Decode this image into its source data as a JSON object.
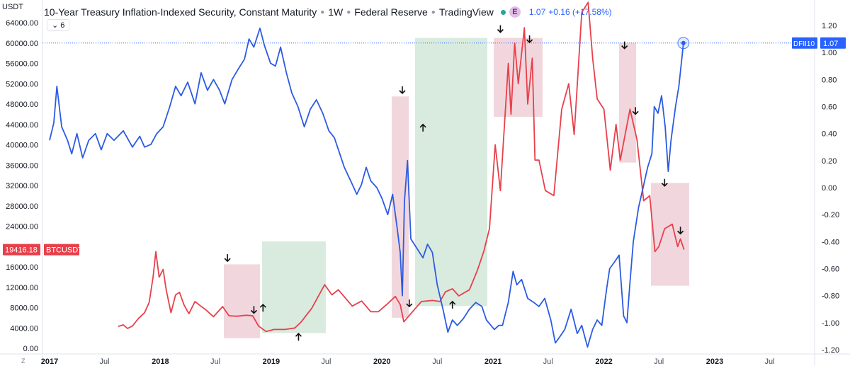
{
  "header": {
    "symbol": "USDT",
    "title": "10-Year Treasury Inflation-Indexed Security, Constant Maturity",
    "interval": "1W",
    "source": "Federal Reserve",
    "platform": "TradingView",
    "event_badge": "E",
    "value": "1.07",
    "change": "+0.16 (+17.58%)",
    "sub_count": "6",
    "axis_corner": "Z"
  },
  "tags": {
    "btc_price": "19416.18",
    "btc_name": "BTCUSDT",
    "dfii_name": "DFII10",
    "dfii_value": "1.07"
  },
  "colors": {
    "btc": "#e8404b",
    "dfii": "#2c5be3",
    "red_box": "#efd0d7",
    "green_box": "#d2e7d9",
    "crosshair": "#2962ff"
  },
  "chart_data": {
    "type": "line",
    "title": "10-Year Treasury Inflation-Indexed Security, Constant Maturity",
    "left_axis": {
      "label": "USDT",
      "ylim": [
        0,
        64000
      ],
      "ticks": [
        "0.00",
        "4000.00",
        "8000.00",
        "12000.00",
        "16000.00",
        "20000.00",
        "24000.00",
        "28000.00",
        "32000.00",
        "36000.00",
        "40000.00",
        "44000.00",
        "48000.00",
        "52000.00",
        "56000.00",
        "60000.00",
        "64000.00"
      ]
    },
    "right_axis": {
      "inverted": true,
      "ylim": [
        1.2,
        -1.2
      ],
      "ticks": [
        "1.20",
        "1.00",
        "0.80",
        "0.60",
        "0.40",
        "0.20",
        "0.00",
        "-0.20",
        "-0.40",
        "-0.60",
        "-0.80",
        "-1.00",
        "-1.20"
      ]
    },
    "x_ticks": [
      "2017",
      "Jul",
      "2018",
      "Jul",
      "2019",
      "Jul",
      "2020",
      "Jul",
      "2021",
      "Jul",
      "2022",
      "Jul",
      "2023",
      "Jul"
    ],
    "series": [
      {
        "name": "BTCUSDT",
        "axis": "left",
        "color": "#e8404b",
        "points": [
          [
            "2017-08-15",
            4300
          ],
          [
            "2017-09-01",
            4600
          ],
          [
            "2017-09-15",
            3900
          ],
          [
            "2017-10-01",
            4400
          ],
          [
            "2017-10-20",
            5800
          ],
          [
            "2017-11-10",
            7000
          ],
          [
            "2017-11-25",
            9000
          ],
          [
            "2017-12-08",
            14000
          ],
          [
            "2017-12-17",
            19000
          ],
          [
            "2017-12-28",
            14000
          ],
          [
            "2018-01-10",
            15500
          ],
          [
            "2018-01-20",
            11500
          ],
          [
            "2018-02-05",
            7000
          ],
          [
            "2018-02-20",
            10500
          ],
          [
            "2018-03-05",
            11000
          ],
          [
            "2018-03-20",
            8500
          ],
          [
            "2018-04-05",
            6800
          ],
          [
            "2018-04-25",
            9200
          ],
          [
            "2018-05-10",
            8500
          ],
          [
            "2018-06-01",
            7500
          ],
          [
            "2018-06-25",
            6200
          ],
          [
            "2018-07-25",
            8200
          ],
          [
            "2018-08-15",
            6400
          ],
          [
            "2018-09-10",
            6300
          ],
          [
            "2018-10-10",
            6500
          ],
          [
            "2018-11-01",
            6400
          ],
          [
            "2018-11-20",
            4400
          ],
          [
            "2018-12-15",
            3300
          ],
          [
            "2019-01-10",
            3700
          ],
          [
            "2019-02-15",
            3700
          ],
          [
            "2019-03-20",
            4000
          ],
          [
            "2019-04-10",
            5200
          ],
          [
            "2019-05-15",
            7900
          ],
          [
            "2019-06-26",
            12500
          ],
          [
            "2019-07-20",
            10500
          ],
          [
            "2019-08-10",
            11500
          ],
          [
            "2019-09-25",
            8300
          ],
          [
            "2019-10-26",
            9300
          ],
          [
            "2019-11-25",
            7200
          ],
          [
            "2019-12-20",
            7200
          ],
          [
            "2020-01-20",
            8800
          ],
          [
            "2020-02-14",
            10200
          ],
          [
            "2020-03-01",
            8600
          ],
          [
            "2020-03-13",
            5200
          ],
          [
            "2020-04-05",
            6800
          ],
          [
            "2020-05-10",
            9200
          ],
          [
            "2020-06-15",
            9400
          ],
          [
            "2020-07-10",
            9200
          ],
          [
            "2020-07-28",
            11100
          ],
          [
            "2020-08-20",
            11700
          ],
          [
            "2020-09-10",
            10300
          ],
          [
            "2020-10-15",
            11500
          ],
          [
            "2020-11-10",
            15300
          ],
          [
            "2020-12-01",
            19000
          ],
          [
            "2020-12-20",
            23500
          ],
          [
            "2021-01-08",
            40000
          ],
          [
            "2021-01-25",
            31000
          ],
          [
            "2021-02-20",
            56000
          ],
          [
            "2021-03-01",
            46000
          ],
          [
            "2021-03-13",
            60000
          ],
          [
            "2021-03-25",
            52000
          ],
          [
            "2021-04-14",
            63000
          ],
          [
            "2021-04-25",
            48000
          ],
          [
            "2021-05-10",
            57000
          ],
          [
            "2021-05-19",
            37000
          ],
          [
            "2021-06-01",
            37000
          ],
          [
            "2021-06-22",
            31000
          ],
          [
            "2021-07-20",
            30000
          ],
          [
            "2021-08-15",
            47000
          ],
          [
            "2021-09-07",
            52000
          ],
          [
            "2021-09-25",
            42000
          ],
          [
            "2021-10-20",
            66000
          ],
          [
            "2021-11-10",
            68000
          ],
          [
            "2021-11-25",
            57000
          ],
          [
            "2021-12-10",
            49000
          ],
          [
            "2022-01-01",
            47000
          ],
          [
            "2022-01-22",
            35000
          ],
          [
            "2022-02-10",
            44000
          ],
          [
            "2022-02-24",
            37000
          ],
          [
            "2022-03-28",
            47000
          ],
          [
            "2022-04-20",
            41000
          ],
          [
            "2022-05-12",
            29000
          ],
          [
            "2022-06-01",
            30000
          ],
          [
            "2022-06-18",
            19000
          ],
          [
            "2022-07-01",
            20000
          ],
          [
            "2022-07-20",
            23500
          ],
          [
            "2022-08-14",
            24400
          ],
          [
            "2022-09-01",
            20000
          ],
          [
            "2022-09-10",
            21500
          ],
          [
            "2022-09-22",
            19400
          ]
        ]
      },
      {
        "name": "DFII10",
        "axis": "right",
        "color": "#2c5be3",
        "points": [
          [
            "2017-01-01",
            0.35
          ],
          [
            "2017-01-15",
            0.48
          ],
          [
            "2017-01-25",
            0.75
          ],
          [
            "2017-02-10",
            0.45
          ],
          [
            "2017-03-01",
            0.35
          ],
          [
            "2017-03-15",
            0.25
          ],
          [
            "2017-04-01",
            0.4
          ],
          [
            "2017-04-20",
            0.22
          ],
          [
            "2017-05-10",
            0.35
          ],
          [
            "2017-06-01",
            0.4
          ],
          [
            "2017-06-20",
            0.28
          ],
          [
            "2017-07-10",
            0.4
          ],
          [
            "2017-08-01",
            0.35
          ],
          [
            "2017-09-01",
            0.42
          ],
          [
            "2017-10-01",
            0.3
          ],
          [
            "2017-10-25",
            0.38
          ],
          [
            "2017-11-10",
            0.3
          ],
          [
            "2017-12-01",
            0.32
          ],
          [
            "2017-12-20",
            0.4
          ],
          [
            "2018-01-10",
            0.45
          ],
          [
            "2018-02-01",
            0.6
          ],
          [
            "2018-02-20",
            0.75
          ],
          [
            "2018-03-10",
            0.68
          ],
          [
            "2018-04-01",
            0.78
          ],
          [
            "2018-04-25",
            0.62
          ],
          [
            "2018-05-15",
            0.85
          ],
          [
            "2018-06-05",
            0.72
          ],
          [
            "2018-06-25",
            0.8
          ],
          [
            "2018-07-15",
            0.72
          ],
          [
            "2018-08-01",
            0.62
          ],
          [
            "2018-08-25",
            0.8
          ],
          [
            "2018-09-15",
            0.88
          ],
          [
            "2018-10-05",
            0.95
          ],
          [
            "2018-10-20",
            1.1
          ],
          [
            "2018-11-05",
            1.04
          ],
          [
            "2018-11-25",
            1.18
          ],
          [
            "2018-12-10",
            1.05
          ],
          [
            "2018-12-30",
            0.92
          ],
          [
            "2019-01-15",
            0.9
          ],
          [
            "2019-02-01",
            1.04
          ],
          [
            "2019-02-20",
            0.85
          ],
          [
            "2019-03-10",
            0.7
          ],
          [
            "2019-03-30",
            0.6
          ],
          [
            "2019-04-20",
            0.45
          ],
          [
            "2019-05-10",
            0.58
          ],
          [
            "2019-05-30",
            0.65
          ],
          [
            "2019-06-20",
            0.55
          ],
          [
            "2019-07-10",
            0.42
          ],
          [
            "2019-07-28",
            0.37
          ],
          [
            "2019-08-15",
            0.25
          ],
          [
            "2019-08-30",
            0.15
          ],
          [
            "2019-09-20",
            0.05
          ],
          [
            "2019-10-10",
            -0.05
          ],
          [
            "2019-10-25",
            0.02
          ],
          [
            "2019-11-10",
            0.15
          ],
          [
            "2019-11-25",
            0.05
          ],
          [
            "2019-12-15",
            0.0
          ],
          [
            "2020-01-01",
            -0.08
          ],
          [
            "2020-01-20",
            -0.2
          ],
          [
            "2020-02-05",
            -0.05
          ],
          [
            "2020-02-20",
            -0.3
          ],
          [
            "2020-03-01",
            -0.48
          ],
          [
            "2020-03-08",
            -0.8
          ],
          [
            "2020-03-15",
            -0.1
          ],
          [
            "2020-03-25",
            0.2
          ],
          [
            "2020-04-05",
            -0.38
          ],
          [
            "2020-04-25",
            -0.45
          ],
          [
            "2020-05-15",
            -0.52
          ],
          [
            "2020-05-30",
            -0.42
          ],
          [
            "2020-06-15",
            -0.48
          ],
          [
            "2020-07-01",
            -0.72
          ],
          [
            "2020-07-20",
            -0.9
          ],
          [
            "2020-08-05",
            -1.07
          ],
          [
            "2020-08-20",
            -0.98
          ],
          [
            "2020-09-05",
            -1.02
          ],
          [
            "2020-09-25",
            -0.97
          ],
          [
            "2020-10-15",
            -0.9
          ],
          [
            "2020-11-05",
            -0.85
          ],
          [
            "2020-11-25",
            -0.88
          ],
          [
            "2020-12-10",
            -0.98
          ],
          [
            "2021-01-05",
            -1.05
          ],
          [
            "2021-01-20",
            -1.02
          ],
          [
            "2021-02-01",
            -1.02
          ],
          [
            "2021-02-20",
            -0.85
          ],
          [
            "2021-03-08",
            -0.62
          ],
          [
            "2021-03-20",
            -0.72
          ],
          [
            "2021-04-05",
            -0.68
          ],
          [
            "2021-04-25",
            -0.82
          ],
          [
            "2021-05-15",
            -0.85
          ],
          [
            "2021-06-01",
            -0.88
          ],
          [
            "2021-06-20",
            -0.82
          ],
          [
            "2021-07-10",
            -0.98
          ],
          [
            "2021-07-25",
            -1.15
          ],
          [
            "2021-08-10",
            -1.1
          ],
          [
            "2021-08-25",
            -1.05
          ],
          [
            "2021-09-15",
            -0.9
          ],
          [
            "2021-10-05",
            -1.08
          ],
          [
            "2021-10-20",
            -1.02
          ],
          [
            "2021-11-08",
            -1.18
          ],
          [
            "2021-11-25",
            -1.05
          ],
          [
            "2021-12-10",
            -0.98
          ],
          [
            "2021-12-25",
            -1.02
          ],
          [
            "2022-01-10",
            -0.75
          ],
          [
            "2022-01-20",
            -0.6
          ],
          [
            "2022-02-05",
            -0.55
          ],
          [
            "2022-02-20",
            -0.5
          ],
          [
            "2022-03-07",
            -0.95
          ],
          [
            "2022-03-18",
            -1.0
          ],
          [
            "2022-03-28",
            -0.7
          ],
          [
            "2022-04-08",
            -0.4
          ],
          [
            "2022-04-25",
            -0.15
          ],
          [
            "2022-05-10",
            0.0
          ],
          [
            "2022-05-25",
            0.15
          ],
          [
            "2022-06-08",
            0.25
          ],
          [
            "2022-06-16",
            0.6
          ],
          [
            "2022-06-28",
            0.55
          ],
          [
            "2022-07-10",
            0.68
          ],
          [
            "2022-07-22",
            0.45
          ],
          [
            "2022-08-01",
            0.12
          ],
          [
            "2022-08-10",
            0.35
          ],
          [
            "2022-08-25",
            0.6
          ],
          [
            "2022-09-05",
            0.75
          ],
          [
            "2022-09-20",
            1.07
          ]
        ]
      }
    ],
    "highlights": [
      {
        "color": "red",
        "from": "2018-07-29",
        "to": "2018-11-25",
        "top": 16500,
        "bottom": 2000
      },
      {
        "color": "green",
        "from": "2018-12-02",
        "to": "2019-06-30",
        "top": 21000,
        "bottom": 3000
      },
      {
        "color": "red",
        "from": "2020-02-02",
        "to": "2020-03-29",
        "top": 49500,
        "bottom": 6000
      },
      {
        "color": "green",
        "from": "2020-04-19",
        "to": "2020-12-13",
        "top": 61000,
        "bottom": 8300
      },
      {
        "color": "red",
        "from": "2021-01-03",
        "to": "2021-06-13",
        "top": 61000,
        "bottom": 45500
      },
      {
        "color": "red",
        "from": "2022-02-20",
        "to": "2022-04-17",
        "top": 60000,
        "bottom": 36500
      },
      {
        "color": "red",
        "from": "2022-06-05",
        "to": "2022-10-09",
        "top": 32500,
        "bottom": 12300
      }
    ],
    "markers": [
      {
        "dir": "down",
        "date": "2018-08-10",
        "value": 17800
      },
      {
        "dir": "down",
        "date": "2018-11-05",
        "value": 7600
      },
      {
        "dir": "up",
        "date": "2018-12-05",
        "value": 7900
      },
      {
        "dir": "up",
        "date": "2019-04-01",
        "value": 2200
      },
      {
        "dir": "down",
        "date": "2020-03-08",
        "value": 50800
      },
      {
        "dir": "down",
        "date": "2020-03-31",
        "value": 8900
      },
      {
        "dir": "up",
        "date": "2020-05-15",
        "value": 43300
      },
      {
        "dir": "up",
        "date": "2020-08-20",
        "value": 8500
      },
      {
        "dir": "down",
        "date": "2021-01-25",
        "value": 62800
      },
      {
        "dir": "down",
        "date": "2021-05-01",
        "value": 60800
      },
      {
        "dir": "down",
        "date": "2022-03-10",
        "value": 59600
      },
      {
        "dir": "down",
        "date": "2022-04-15",
        "value": 46700
      },
      {
        "dir": "down",
        "date": "2022-07-20",
        "value": 32600
      },
      {
        "dir": "down",
        "date": "2022-09-10",
        "value": 23200
      }
    ],
    "crosshair_value": 1.07
  }
}
